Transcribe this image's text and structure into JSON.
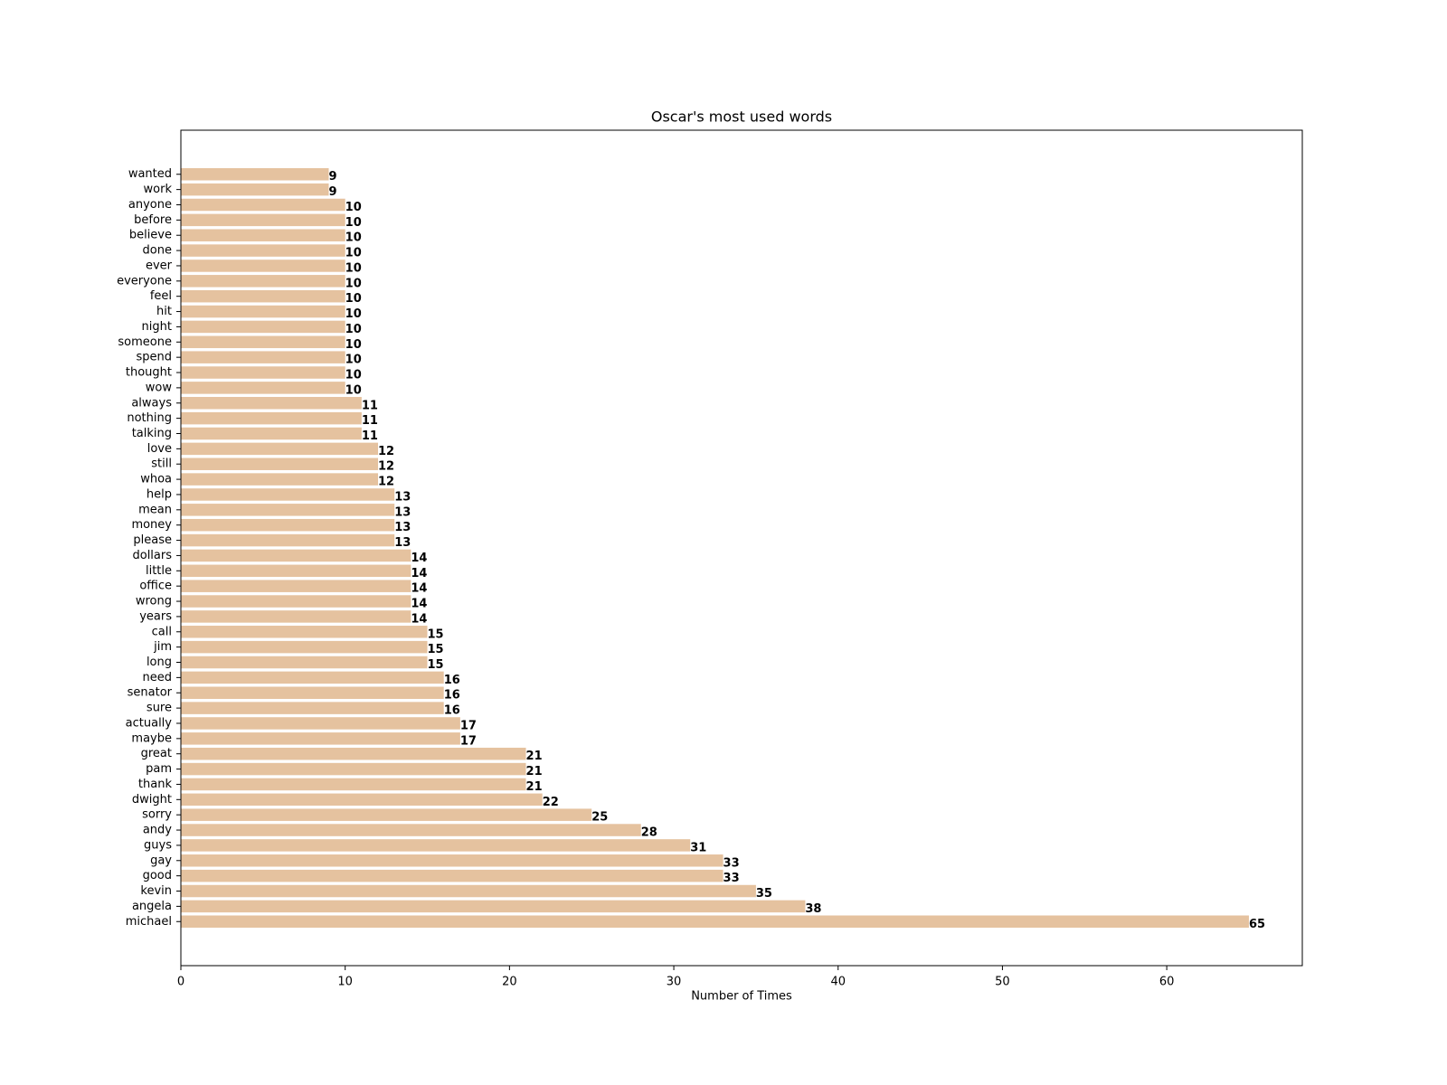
{
  "chart_data": {
    "type": "barh",
    "title": "Oscar's most used words",
    "xlabel": "Number of Times",
    "categories": [
      "wanted",
      "work",
      "anyone",
      "before",
      "believe",
      "done",
      "ever",
      "everyone",
      "feel",
      "hit",
      "night",
      "someone",
      "spend",
      "thought",
      "wow",
      "always",
      "nothing",
      "talking",
      "love",
      "still",
      "whoa",
      "help",
      "mean",
      "money",
      "please",
      "dollars",
      "little",
      "office",
      "wrong",
      "years",
      "call",
      "jim",
      "long",
      "need",
      "senator",
      "sure",
      "actually",
      "maybe",
      "great",
      "pam",
      "thank",
      "dwight",
      "sorry",
      "andy",
      "guys",
      "gay",
      "good",
      "kevin",
      "angela",
      "michael"
    ],
    "values": [
      9,
      9,
      10,
      10,
      10,
      10,
      10,
      10,
      10,
      10,
      10,
      10,
      10,
      10,
      10,
      11,
      11,
      11,
      12,
      12,
      12,
      13,
      13,
      13,
      13,
      14,
      14,
      14,
      14,
      14,
      15,
      15,
      15,
      16,
      16,
      16,
      17,
      17,
      21,
      21,
      21,
      22,
      25,
      28,
      31,
      33,
      33,
      35,
      38,
      65
    ],
    "color": "#e5c29f",
    "xlim": [
      0,
      68.25
    ],
    "xticks": [
      0,
      10,
      20,
      30,
      40,
      50,
      60
    ],
    "grid": false
  }
}
